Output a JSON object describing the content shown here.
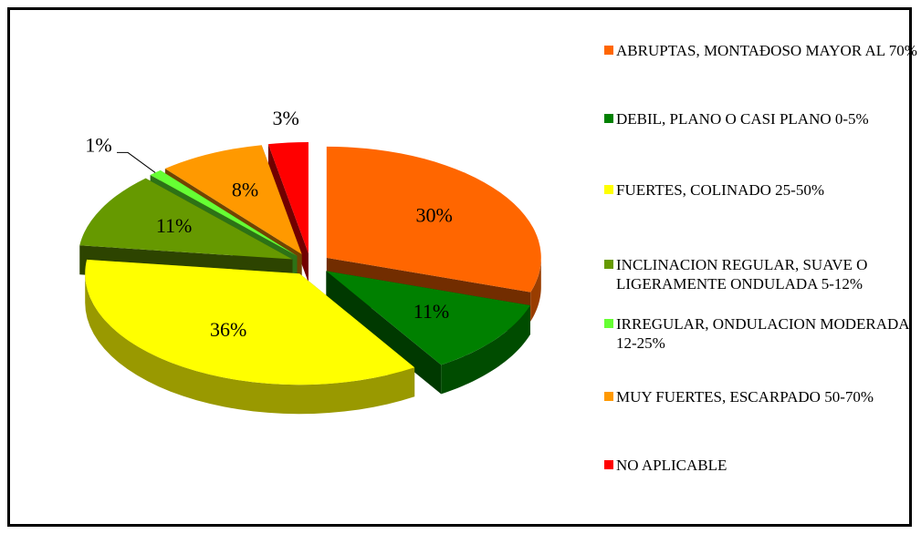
{
  "chart_data": {
    "type": "pie3d",
    "labels": [
      "ABRUPTAS, MONTAĐOSO MAYOR AL 70%",
      "DEBIL, PLANO O CASI PLANO 0-5%",
      "FUERTES, COLINADO 25-50%",
      "INCLINACION REGULAR, SUAVE O LIGERAMENTE ONDULADA 5-12%",
      "IRREGULAR, ONDULACION MODERADA 12-25%",
      "MUY FUERTES, ESCARPADO 50-70%",
      "NO APLICABLE"
    ],
    "values": [
      30,
      11,
      36,
      11,
      1,
      8,
      3
    ],
    "value_labels": [
      "30%",
      "11%",
      "36%",
      "11%",
      "1%",
      "8%",
      "3%"
    ],
    "colors": [
      "#ff6600",
      "#008000",
      "#ffff00",
      "#669900",
      "#66ff33",
      "#ff9900",
      "#ff0000"
    ],
    "legend": "right"
  }
}
